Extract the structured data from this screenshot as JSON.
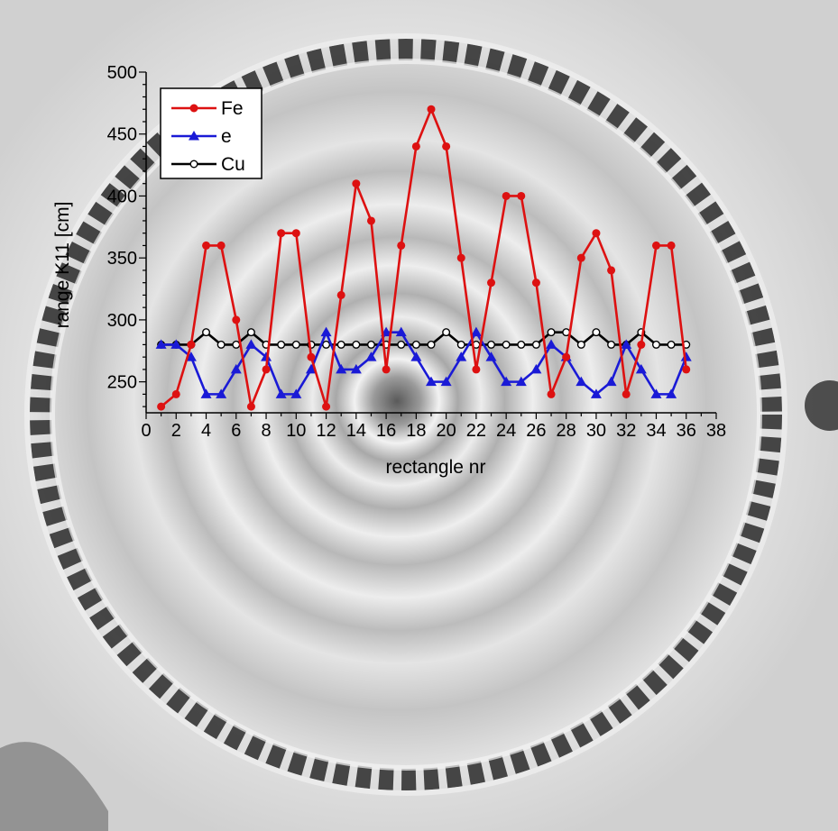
{
  "chart_data": {
    "type": "line",
    "xlabel": "rectangle nr",
    "ylabel": "range K11 [cm]",
    "xlim": [
      0,
      38
    ],
    "ylim": [
      225,
      500
    ],
    "x_ticks": [
      0,
      2,
      4,
      6,
      8,
      10,
      12,
      14,
      16,
      18,
      20,
      22,
      24,
      26,
      28,
      30,
      32,
      34,
      36,
      38
    ],
    "y_ticks": [
      250,
      300,
      350,
      400,
      450,
      500
    ],
    "grid": false,
    "legend_position": "top-left",
    "x": [
      1,
      2,
      3,
      4,
      5,
      6,
      7,
      8,
      9,
      10,
      11,
      12,
      13,
      14,
      15,
      16,
      17,
      18,
      19,
      20,
      21,
      22,
      23,
      24,
      25,
      26,
      27,
      28,
      29,
      30,
      31,
      32,
      33,
      34,
      35,
      36
    ],
    "series": [
      {
        "name": "Fe",
        "color": "#dd1111",
        "marker": "filled-circle",
        "values": [
          230,
          240,
          280,
          360,
          360,
          300,
          230,
          260,
          370,
          370,
          270,
          230,
          320,
          410,
          380,
          260,
          360,
          440,
          470,
          440,
          350,
          260,
          330,
          400,
          400,
          330,
          240,
          270,
          350,
          370,
          340,
          240,
          280,
          360,
          360,
          260
        ]
      },
      {
        "name": "e",
        "color": "#1a1ad6",
        "marker": "filled-triangle",
        "values": [
          280,
          280,
          270,
          240,
          240,
          260,
          280,
          270,
          240,
          240,
          260,
          290,
          260,
          260,
          270,
          290,
          290,
          270,
          250,
          250,
          270,
          290,
          270,
          250,
          250,
          260,
          280,
          270,
          250,
          240,
          250,
          280,
          260,
          240,
          240,
          270
        ]
      },
      {
        "name": "Cu",
        "color": "#000000",
        "marker": "open-circle",
        "values": [
          280,
          280,
          280,
          290,
          280,
          280,
          290,
          280,
          280,
          280,
          280,
          280,
          280,
          280,
          280,
          280,
          280,
          280,
          280,
          290,
          280,
          280,
          280,
          280,
          280,
          280,
          290,
          290,
          280,
          290,
          280,
          280,
          290,
          280,
          280,
          280
        ]
      }
    ]
  }
}
